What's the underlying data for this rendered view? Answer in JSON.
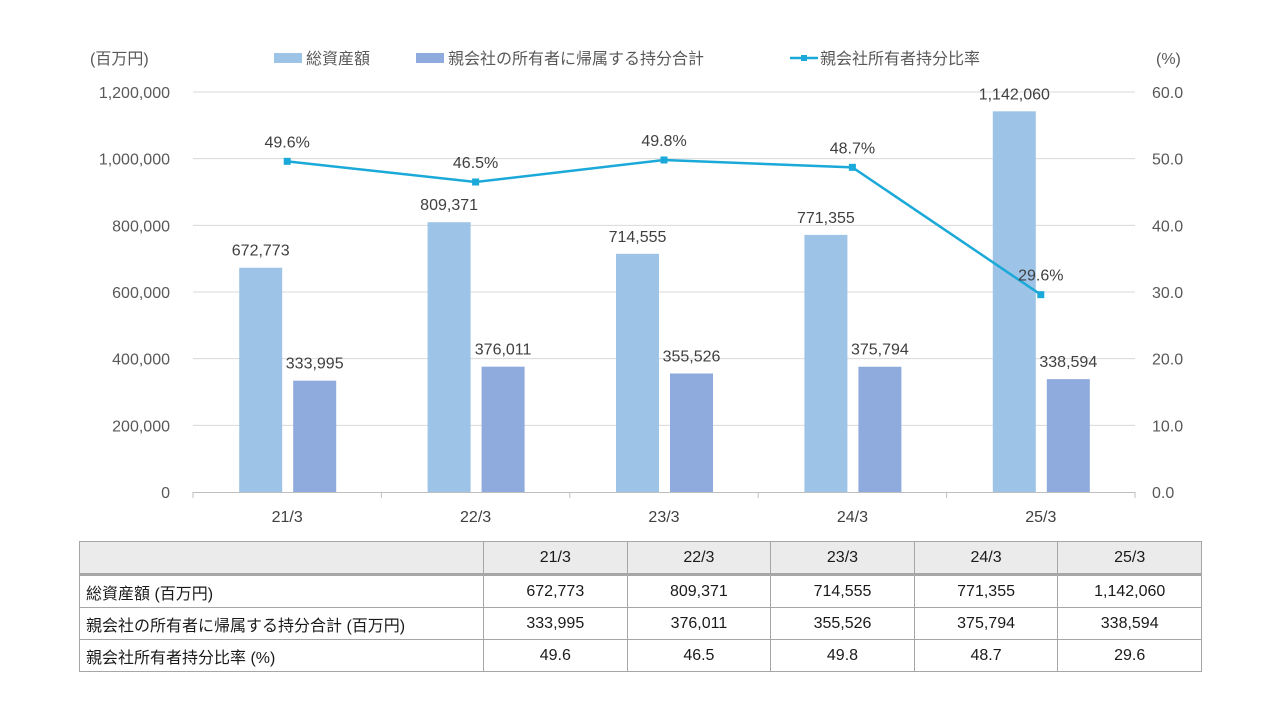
{
  "chart_data": {
    "type": "bar",
    "title": "",
    "categories": [
      "21/3",
      "22/3",
      "23/3",
      "24/3",
      "25/3"
    ],
    "left_axis": {
      "unit_label": "(百万円)",
      "ylim": [
        0,
        1200000
      ],
      "ticks": [
        "0",
        "200,000",
        "400,000",
        "600,000",
        "800,000",
        "1,000,000",
        "1,200,000"
      ],
      "tick_values": [
        0,
        200000,
        400000,
        600000,
        800000,
        1000000,
        1200000
      ]
    },
    "right_axis": {
      "unit_label": "(%)",
      "ylim": [
        0,
        60
      ],
      "ticks": [
        "0.0",
        "10.0",
        "20.0",
        "30.0",
        "40.0",
        "50.0",
        "60.0"
      ],
      "tick_values": [
        0,
        10,
        20,
        30,
        40,
        50,
        60
      ]
    },
    "grid": true,
    "legend_position": "top",
    "series": [
      {
        "name": "総資産額",
        "type": "bar",
        "axis": "left",
        "color": "#9dc3e6",
        "values": [
          672773,
          809371,
          714555,
          771355,
          1142060
        ],
        "labels": [
          "672,773",
          "809,371",
          "714,555",
          "771,355",
          "1,142,060"
        ]
      },
      {
        "name": "親会社の所有者に帰属する持分合計",
        "type": "bar",
        "axis": "left",
        "color": "#8faadc",
        "values": [
          333995,
          376011,
          355526,
          375794,
          338594
        ],
        "labels": [
          "333,995",
          "376,011",
          "355,526",
          "375,794",
          "338,594"
        ]
      },
      {
        "name": "親会社所有者持分比率",
        "type": "line",
        "axis": "right",
        "color": "#1aa9d9",
        "values": [
          49.6,
          46.5,
          49.8,
          48.7,
          29.6
        ],
        "labels": [
          "49.6%",
          "46.5%",
          "49.8%",
          "48.7%",
          "29.6%"
        ]
      }
    ]
  },
  "table": {
    "header": [
      "",
      "21/3",
      "22/3",
      "23/3",
      "24/3",
      "25/3"
    ],
    "rows": [
      {
        "label": "総資産額 (百万円)",
        "values": [
          "672,773",
          "809,371",
          "714,555",
          "771,355",
          "1,142,060"
        ]
      },
      {
        "label": "親会社の所有者に帰属する持分合計 (百万円)",
        "values": [
          "333,995",
          "376,011",
          "355,526",
          "375,794",
          "338,594"
        ]
      },
      {
        "label": "親会社所有者持分比率 (%)",
        "values": [
          "49.6",
          "46.5",
          "49.8",
          "48.7",
          "29.6"
        ]
      }
    ]
  },
  "colors": {
    "gridline": "#d9d9d9",
    "axis": "#bfbfbf"
  }
}
